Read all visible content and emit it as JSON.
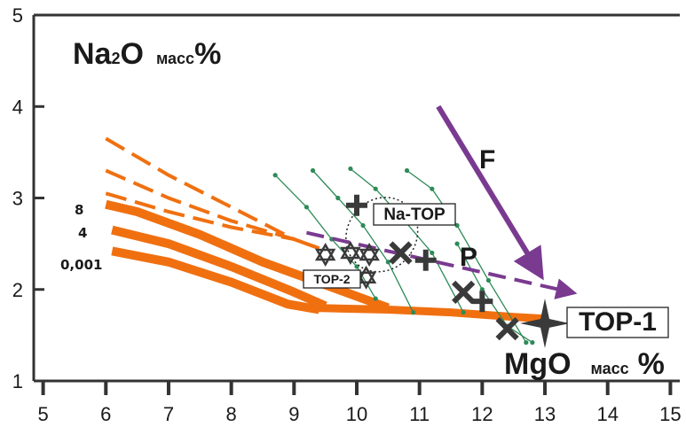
{
  "chart_data": {
    "type": "scatter",
    "title": "",
    "xlabel": {
      "main": "MgO",
      "sub": "масс",
      "pct": "%"
    },
    "ylabel": {
      "main": "Na",
      "sub2": "2",
      "o": "O",
      "sub": "масс",
      "pct": "%"
    },
    "xlim": [
      4.85,
      15.15
    ],
    "ylim": [
      1,
      5
    ],
    "x_ticks": [
      5,
      6,
      7,
      8,
      9,
      10,
      11,
      12,
      13,
      14,
      15
    ],
    "y_ticks": [
      1,
      2,
      3,
      4,
      5
    ],
    "colors": {
      "orange": "#f07010",
      "purple": "#7a3a90",
      "green": "#2e8b57",
      "dark": "#3a3a3a"
    },
    "solid_orange_lines": [
      {
        "label": "8",
        "points": [
          [
            6.0,
            2.93
          ],
          [
            6.5,
            2.85
          ],
          [
            7.5,
            2.6
          ],
          [
            8.5,
            2.3
          ],
          [
            9.5,
            2.05
          ],
          [
            10.5,
            1.8
          ]
        ]
      },
      {
        "label": "4",
        "points": [
          [
            6.1,
            2.65
          ],
          [
            7.0,
            2.5
          ],
          [
            8.0,
            2.25
          ],
          [
            9.0,
            1.97
          ],
          [
            9.5,
            1.82
          ]
        ]
      },
      {
        "label": "0,001",
        "points": [
          [
            6.1,
            2.42
          ],
          [
            7.0,
            2.3
          ],
          [
            8.0,
            2.08
          ],
          [
            8.9,
            1.84
          ],
          [
            9.4,
            1.78
          ]
        ]
      },
      {
        "label": "",
        "points": [
          [
            9.2,
            1.8
          ],
          [
            10.5,
            1.78
          ],
          [
            11.5,
            1.75
          ],
          [
            12.5,
            1.7
          ],
          [
            13.0,
            1.68
          ]
        ]
      }
    ],
    "dashed_orange_lines": [
      [
        [
          6.0,
          3.65
        ],
        [
          7.0,
          3.25
        ],
        [
          8.0,
          2.9
        ],
        [
          9.0,
          2.55
        ],
        [
          9.4,
          2.45
        ]
      ],
      [
        [
          6.0,
          3.3
        ],
        [
          7.0,
          3.0
        ],
        [
          8.0,
          2.75
        ],
        [
          9.0,
          2.55
        ],
        [
          9.4,
          2.45
        ]
      ],
      [
        [
          6.0,
          3.05
        ],
        [
          7.0,
          2.85
        ],
        [
          8.0,
          2.68
        ],
        [
          9.0,
          2.55
        ],
        [
          9.4,
          2.45
        ]
      ]
    ],
    "green_trends": [
      [
        [
          8.7,
          3.25
        ],
        [
          9.2,
          2.9
        ],
        [
          9.6,
          2.55
        ],
        [
          10.0,
          2.25
        ],
        [
          10.3,
          1.9
        ]
      ],
      [
        [
          9.3,
          3.3
        ],
        [
          9.7,
          3.0
        ],
        [
          10.1,
          2.7
        ],
        [
          10.5,
          2.3
        ],
        [
          10.9,
          1.75
        ]
      ],
      [
        [
          9.9,
          3.32
        ],
        [
          10.3,
          3.1
        ],
        [
          10.7,
          2.8
        ],
        [
          11.2,
          2.4
        ],
        [
          11.7,
          1.75
        ]
      ],
      [
        [
          10.8,
          3.3
        ],
        [
          11.2,
          3.1
        ],
        [
          11.6,
          2.7
        ],
        [
          12.1,
          2.1
        ],
        [
          12.7,
          1.42
        ]
      ],
      [
        [
          11.6,
          2.5
        ],
        [
          12.0,
          2.0
        ],
        [
          12.4,
          1.6
        ],
        [
          12.8,
          1.42
        ]
      ]
    ],
    "markers": {
      "crosses": [
        [
          10.7,
          2.4
        ],
        [
          11.7,
          1.97
        ],
        [
          12.4,
          1.57
        ]
      ],
      "pluses": [
        [
          10.0,
          2.92
        ],
        [
          11.1,
          2.32
        ],
        [
          12.0,
          1.87
        ]
      ],
      "stars": [
        [
          9.5,
          2.38
        ],
        [
          9.9,
          2.4
        ],
        [
          10.2,
          2.38
        ],
        [
          10.15,
          2.13
        ]
      ],
      "top1": [
        13.0,
        1.63
      ]
    },
    "labels": {
      "series_8": "8",
      "series_4": "4",
      "series_0001": "0,001",
      "na_top": "Na-TOP",
      "top2": "TOP-2",
      "top1": "TOP-1",
      "F": "F",
      "P": "P"
    },
    "arrows": {
      "F": {
        "from": [
          11.3,
          4.0
        ],
        "to": [
          12.85,
          2.25
        ]
      },
      "P": {
        "from": [
          9.2,
          2.62
        ],
        "to": [
          13.35,
          1.98
        ]
      }
    },
    "dotted_ellipse": {
      "center": [
        10.4,
        2.6
      ],
      "rx": 0.55,
      "ry": 0.42
    }
  }
}
